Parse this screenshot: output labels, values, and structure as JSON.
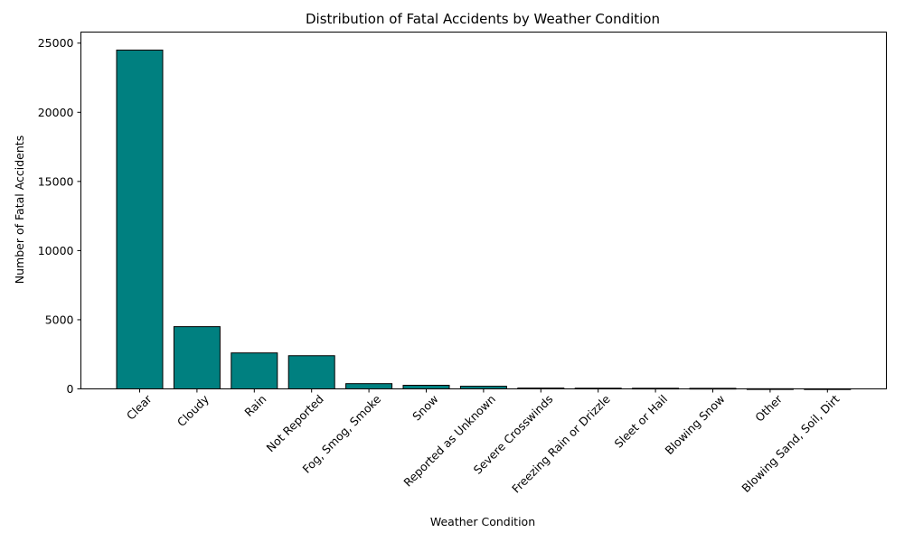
{
  "chart_data": {
    "type": "bar",
    "title": "Distribution of Fatal Accidents by Weather Condition",
    "xlabel": "Weather Condition",
    "ylabel": "Number of Fatal Accidents",
    "categories": [
      "Clear",
      "Cloudy",
      "Rain",
      "Not Reported",
      "Fog, Smog, Smoke",
      "Snow",
      "Reported as Unknown",
      "Severe Crosswinds",
      "Freezing Rain or Drizzle",
      "Sleet or Hail",
      "Blowing Snow",
      "Other",
      "Blowing Sand, Soil, Dirt"
    ],
    "values": [
      24500,
      4500,
      2600,
      2400,
      380,
      260,
      190,
      60,
      50,
      45,
      40,
      12,
      8
    ],
    "ylim": [
      0,
      25800
    ],
    "yticks": [
      0,
      5000,
      10000,
      15000,
      20000,
      25000
    ],
    "bar_color": "#008080",
    "edge_color": "#000000",
    "grid": false,
    "legend": "none"
  }
}
